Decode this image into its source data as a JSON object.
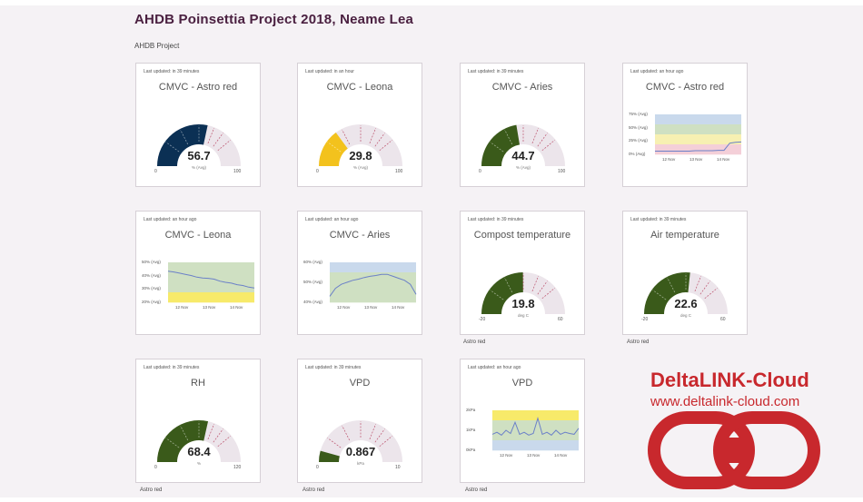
{
  "page": {
    "title": "AHDB Poinsettia Project 2018, Neame Lea",
    "project_label": "AHDB Project"
  },
  "colors": {
    "navy": "#0b3054",
    "yellow": "#f3c21d",
    "green": "#3a5a1a",
    "track": "#ece5eb",
    "line": "#6b80c8",
    "logo_red": "#c8282d"
  },
  "gauges": [
    {
      "id": "g1",
      "updated": "Last updated: in 39 minutes",
      "title": "CMVC - Astro red",
      "value": "56.7",
      "unit": "% (Avg)",
      "min": "0",
      "max": "100",
      "fraction": 0.567,
      "color": "#0b3054"
    },
    {
      "id": "g2",
      "updated": "Last updated: in an hour",
      "title": "CMVC - Leona",
      "value": "29.8",
      "unit": "% (Avg)",
      "min": "0",
      "max": "100",
      "fraction": 0.298,
      "color": "#f3c21d"
    },
    {
      "id": "g3",
      "updated": "Last updated: in 39 minutes",
      "title": "CMVC - Aries",
      "value": "44.7",
      "unit": "% (Avg)",
      "min": "0",
      "max": "100",
      "fraction": 0.447,
      "color": "#3a5a1a"
    },
    {
      "id": "g4",
      "updated": "Last updated: in 39 minutes",
      "title": "Compost temperature",
      "value": "19.8",
      "unit": "deg C",
      "min": "-20",
      "max": "60",
      "fraction": 0.4975,
      "color": "#3a5a1a",
      "below": "Astro red"
    },
    {
      "id": "g5",
      "updated": "Last updated: in 39 minutes",
      "title": "Air temperature",
      "value": "22.6",
      "unit": "deg C",
      "min": "-20",
      "max": "60",
      "fraction": 0.5325,
      "color": "#3a5a1a",
      "below": "Astro red"
    },
    {
      "id": "g6",
      "updated": "Last updated: in 39 minutes",
      "title": "RH",
      "value": "68.4",
      "unit": "%",
      "min": "0",
      "max": "120",
      "fraction": 0.57,
      "color": "#3a5a1a",
      "below": "Astro red"
    },
    {
      "id": "g7",
      "updated": "Last updated: in 39 minutes",
      "title": "VPD",
      "value": "0.867",
      "unit": "kPa",
      "min": "0",
      "max": "10",
      "fraction": 0.0867,
      "color": "#3a5a1a",
      "below": "Astro red"
    }
  ],
  "charts": [
    {
      "id": "c1",
      "updated": "Last updated: an hour ago",
      "title": "CMVC - Astro red",
      "yticks": [
        "75% (Avg)",
        "50% (Avg)",
        "25% (Avg)",
        "0% (Avg)"
      ],
      "xticks": [
        "12 Nov",
        "13 Nov",
        "14 Nov"
      ],
      "bands": [
        "#c9d9ec",
        "#cfe0c2",
        "#f7f0b2",
        "#f4cfd8"
      ],
      "line": [
        0.92,
        0.92,
        0.92,
        0.92,
        0.92,
        0.92,
        0.92,
        0.91,
        0.91,
        0.91,
        0.91,
        0.9,
        0.9,
        0.72,
        0.7,
        0.69
      ],
      "chart_data": {
        "type": "line",
        "x_labels": [
          "12 Nov",
          "13 Nov",
          "14 Nov"
        ],
        "ylim": [
          0,
          75
        ]
      }
    },
    {
      "id": "c2",
      "updated": "Last updated: an hour ago",
      "title": "CMVC - Leona",
      "yticks": [
        "50% (Avg)",
        "40% (Avg)",
        "30% (Avg)",
        "20% (Avg)"
      ],
      "xticks": [
        "12 Nov",
        "13 Nov",
        "14 Nov"
      ],
      "bands": [
        "#cfe0c2",
        "#cfe0c2",
        "#cfe0c2",
        "#f7ea6a"
      ],
      "line": [
        0.22,
        0.24,
        0.27,
        0.3,
        0.33,
        0.37,
        0.39,
        0.4,
        0.42,
        0.47,
        0.5,
        0.52,
        0.56,
        0.58,
        0.62,
        0.64
      ],
      "chart_data": {
        "type": "line",
        "x_labels": [
          "12 Nov",
          "13 Nov",
          "14 Nov"
        ],
        "ylim": [
          20,
          50
        ]
      }
    },
    {
      "id": "c3",
      "updated": "Last updated: an hour ago",
      "title": "CMVC - Aries",
      "yticks": [
        "60% (Avg)",
        "50% (Avg)",
        "40% (Avg)"
      ],
      "xticks": [
        "12 Nov",
        "13 Nov",
        "14 Nov"
      ],
      "bands": [
        "#c9d9ec",
        "#cfe0c2",
        "#cfe0c2",
        "#cfe0c2"
      ],
      "line": [
        0.85,
        0.65,
        0.55,
        0.5,
        0.45,
        0.42,
        0.38,
        0.35,
        0.33,
        0.3,
        0.3,
        0.35,
        0.4,
        0.45,
        0.55,
        0.8
      ],
      "chart_data": {
        "type": "line",
        "x_labels": [
          "12 Nov",
          "13 Nov",
          "14 Nov"
        ],
        "ylim": [
          40,
          60
        ]
      }
    },
    {
      "id": "c4",
      "updated": "Last updated: an hour ago",
      "title": "VPD",
      "yticks": [
        "2kPa",
        "1kPa",
        "0kPa"
      ],
      "xticks": [
        "12 Nov",
        "13 Nov",
        "14 Nov"
      ],
      "bands": [
        "#f7ea6a",
        "#cfe0c2",
        "#cfe0c2",
        "#c9d9ec"
      ],
      "line": [
        0.6,
        0.55,
        0.62,
        0.5,
        0.58,
        0.3,
        0.6,
        0.55,
        0.62,
        0.58,
        0.2,
        0.6,
        0.55,
        0.62,
        0.5,
        0.6,
        0.55,
        0.58,
        0.6,
        0.45
      ],
      "below": "Astro red",
      "chart_data": {
        "type": "line",
        "x_labels": [
          "12 Nov",
          "13 Nov",
          "14 Nov"
        ],
        "ylim": [
          0,
          2
        ]
      }
    }
  ],
  "logo": {
    "title": "DeltaLINK-Cloud",
    "url": "www.deltalink-cloud.com",
    "icon": "chain-link-icon"
  }
}
